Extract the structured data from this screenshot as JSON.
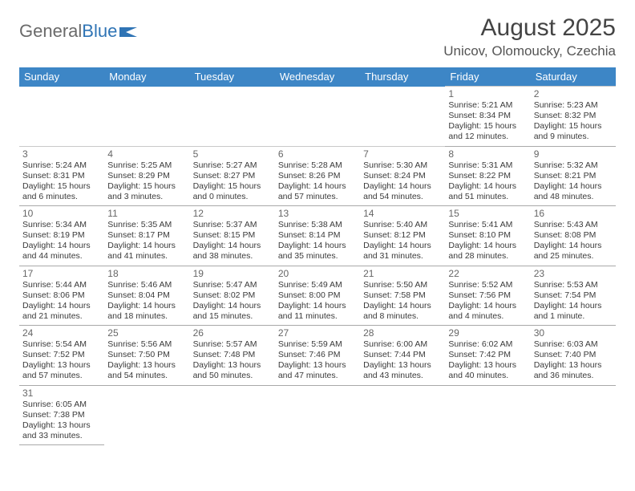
{
  "brand": {
    "part1": "General",
    "part2": "Blue",
    "logo_color": "#2f74b5"
  },
  "title": "August 2025",
  "location": "Unicov, Olomoucky, Czechia",
  "theme": {
    "header_bg": "#3d86c6",
    "header_fg": "#ffffff",
    "grid_line": "#b9b9b9",
    "text_color": "#3a3a3a",
    "page_bg": "#ffffff"
  },
  "typography": {
    "title_fontsize": 30,
    "location_fontsize": 17,
    "dayheader_fontsize": 13,
    "cell_fontsize": 10.5,
    "logo_fontsize": 22
  },
  "day_headers": [
    "Sunday",
    "Monday",
    "Tuesday",
    "Wednesday",
    "Thursday",
    "Friday",
    "Saturday"
  ],
  "weeks": [
    [
      null,
      null,
      null,
      null,
      null,
      {
        "n": "1",
        "sunrise": "5:21 AM",
        "sunset": "8:34 PM",
        "daylight": "15 hours and 12 minutes."
      },
      {
        "n": "2",
        "sunrise": "5:23 AM",
        "sunset": "8:32 PM",
        "daylight": "15 hours and 9 minutes."
      }
    ],
    [
      {
        "n": "3",
        "sunrise": "5:24 AM",
        "sunset": "8:31 PM",
        "daylight": "15 hours and 6 minutes."
      },
      {
        "n": "4",
        "sunrise": "5:25 AM",
        "sunset": "8:29 PM",
        "daylight": "15 hours and 3 minutes."
      },
      {
        "n": "5",
        "sunrise": "5:27 AM",
        "sunset": "8:27 PM",
        "daylight": "15 hours and 0 minutes."
      },
      {
        "n": "6",
        "sunrise": "5:28 AM",
        "sunset": "8:26 PM",
        "daylight": "14 hours and 57 minutes."
      },
      {
        "n": "7",
        "sunrise": "5:30 AM",
        "sunset": "8:24 PM",
        "daylight": "14 hours and 54 minutes."
      },
      {
        "n": "8",
        "sunrise": "5:31 AM",
        "sunset": "8:22 PM",
        "daylight": "14 hours and 51 minutes."
      },
      {
        "n": "9",
        "sunrise": "5:32 AM",
        "sunset": "8:21 PM",
        "daylight": "14 hours and 48 minutes."
      }
    ],
    [
      {
        "n": "10",
        "sunrise": "5:34 AM",
        "sunset": "8:19 PM",
        "daylight": "14 hours and 44 minutes."
      },
      {
        "n": "11",
        "sunrise": "5:35 AM",
        "sunset": "8:17 PM",
        "daylight": "14 hours and 41 minutes."
      },
      {
        "n": "12",
        "sunrise": "5:37 AM",
        "sunset": "8:15 PM",
        "daylight": "14 hours and 38 minutes."
      },
      {
        "n": "13",
        "sunrise": "5:38 AM",
        "sunset": "8:14 PM",
        "daylight": "14 hours and 35 minutes."
      },
      {
        "n": "14",
        "sunrise": "5:40 AM",
        "sunset": "8:12 PM",
        "daylight": "14 hours and 31 minutes."
      },
      {
        "n": "15",
        "sunrise": "5:41 AM",
        "sunset": "8:10 PM",
        "daylight": "14 hours and 28 minutes."
      },
      {
        "n": "16",
        "sunrise": "5:43 AM",
        "sunset": "8:08 PM",
        "daylight": "14 hours and 25 minutes."
      }
    ],
    [
      {
        "n": "17",
        "sunrise": "5:44 AM",
        "sunset": "8:06 PM",
        "daylight": "14 hours and 21 minutes."
      },
      {
        "n": "18",
        "sunrise": "5:46 AM",
        "sunset": "8:04 PM",
        "daylight": "14 hours and 18 minutes."
      },
      {
        "n": "19",
        "sunrise": "5:47 AM",
        "sunset": "8:02 PM",
        "daylight": "14 hours and 15 minutes."
      },
      {
        "n": "20",
        "sunrise": "5:49 AM",
        "sunset": "8:00 PM",
        "daylight": "14 hours and 11 minutes."
      },
      {
        "n": "21",
        "sunrise": "5:50 AM",
        "sunset": "7:58 PM",
        "daylight": "14 hours and 8 minutes."
      },
      {
        "n": "22",
        "sunrise": "5:52 AM",
        "sunset": "7:56 PM",
        "daylight": "14 hours and 4 minutes."
      },
      {
        "n": "23",
        "sunrise": "5:53 AM",
        "sunset": "7:54 PM",
        "daylight": "14 hours and 1 minute."
      }
    ],
    [
      {
        "n": "24",
        "sunrise": "5:54 AM",
        "sunset": "7:52 PM",
        "daylight": "13 hours and 57 minutes."
      },
      {
        "n": "25",
        "sunrise": "5:56 AM",
        "sunset": "7:50 PM",
        "daylight": "13 hours and 54 minutes."
      },
      {
        "n": "26",
        "sunrise": "5:57 AM",
        "sunset": "7:48 PM",
        "daylight": "13 hours and 50 minutes."
      },
      {
        "n": "27",
        "sunrise": "5:59 AM",
        "sunset": "7:46 PM",
        "daylight": "13 hours and 47 minutes."
      },
      {
        "n": "28",
        "sunrise": "6:00 AM",
        "sunset": "7:44 PM",
        "daylight": "13 hours and 43 minutes."
      },
      {
        "n": "29",
        "sunrise": "6:02 AM",
        "sunset": "7:42 PM",
        "daylight": "13 hours and 40 minutes."
      },
      {
        "n": "30",
        "sunrise": "6:03 AM",
        "sunset": "7:40 PM",
        "daylight": "13 hours and 36 minutes."
      }
    ],
    [
      {
        "n": "31",
        "sunrise": "6:05 AM",
        "sunset": "7:38 PM",
        "daylight": "13 hours and 33 minutes."
      },
      null,
      null,
      null,
      null,
      null,
      null
    ]
  ],
  "labels": {
    "sunrise": "Sunrise: ",
    "sunset": "Sunset: ",
    "daylight": "Daylight: "
  }
}
